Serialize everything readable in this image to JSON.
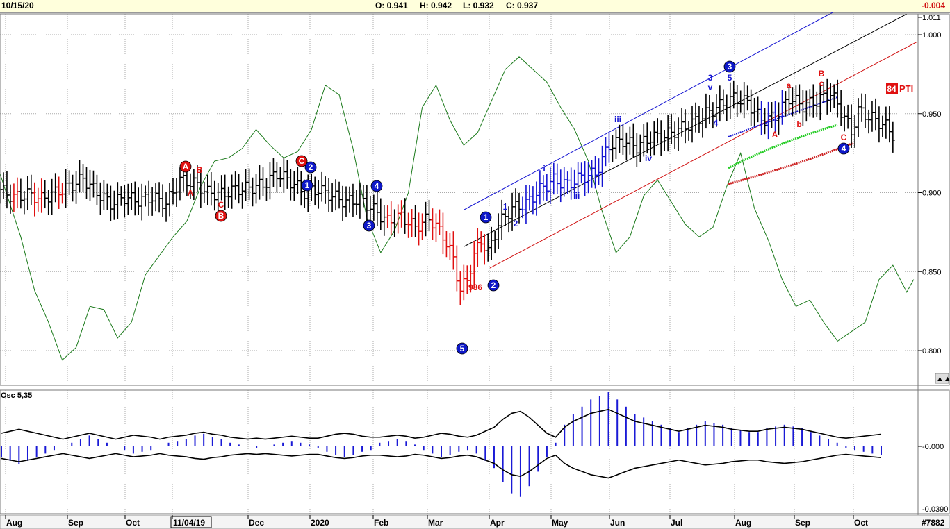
{
  "header": {
    "date": "10/15/20",
    "open": "O: 0.941",
    "high": "H: 0.942",
    "low": "L: 0.932",
    "close": "C: 0.937",
    "change": "-0.004"
  },
  "colors": {
    "up": "#000000",
    "down": "#e01010",
    "wave": "#1414d2",
    "osc": "#1a1ad6",
    "green_line": "#1b7a1b",
    "header_bg": "#ffffdc"
  },
  "chart_data": [
    {
      "type": "line",
      "title": "",
      "ylim": [
        0.78,
        1.01
      ],
      "y_ticks": [
        "1.011",
        "1.000",
        "0.950",
        "0.900",
        "0.850",
        "0.800"
      ],
      "x_ticks": [
        "Aug",
        "Sep",
        "Oct",
        "11/04/19",
        "Dec",
        "2020",
        "Feb",
        "Mar",
        "Apr",
        "May",
        "Jun",
        "Jul",
        "Aug",
        "Sep",
        "Oct"
      ],
      "series": [
        {
          "points": [
            [
              0,
              0.902
            ],
            [
              4,
              0.897
            ],
            [
              8,
              0.899
            ],
            [
              12,
              0.896
            ],
            [
              16,
              0.9
            ],
            [
              20,
              0.904
            ],
            [
              24,
              0.909
            ],
            [
              28,
              0.9
            ],
            [
              32,
              0.893
            ],
            [
              36,
              0.897
            ],
            [
              40,
              0.895
            ],
            [
              44,
              0.897
            ],
            [
              48,
              0.893
            ],
            [
              52,
              0.908
            ],
            [
              56,
              0.906
            ],
            [
              60,
              0.9
            ],
            [
              64,
              0.899
            ],
            [
              68,
              0.902
            ],
            [
              72,
              0.903
            ],
            [
              76,
              0.905
            ],
            [
              80,
              0.912
            ],
            [
              84,
              0.907
            ],
            [
              88,
              0.9
            ],
            [
              92,
              0.902
            ],
            [
              96,
              0.898
            ],
            [
              100,
              0.894
            ],
            [
              104,
              0.896
            ],
            [
              108,
              0.889
            ],
            [
              112,
              0.882
            ],
            [
              116,
              0.885
            ],
            [
              120,
              0.878
            ],
            [
              124,
              0.884
            ],
            [
              128,
              0.873
            ],
            [
              131,
              0.858
            ],
            [
              133,
              0.838
            ],
            [
              135,
              0.845
            ],
            [
              137,
              0.86
            ],
            [
              139,
              0.87
            ],
            [
              141,
              0.862
            ],
            [
              144,
              0.88
            ],
            [
              148,
              0.89
            ],
            [
              152,
              0.893
            ],
            [
              156,
              0.902
            ],
            [
              160,
              0.908
            ],
            [
              164,
              0.905
            ],
            [
              168,
              0.91
            ],
            [
              172,
              0.912
            ],
            [
              176,
              0.93
            ],
            [
              180,
              0.933
            ],
            [
              184,
              0.929
            ],
            [
              188,
              0.935
            ],
            [
              192,
              0.936
            ],
            [
              196,
              0.94
            ],
            [
              200,
              0.944
            ],
            [
              204,
              0.95
            ],
            [
              208,
              0.955
            ],
            [
              212,
              0.96
            ],
            [
              216,
              0.957
            ],
            [
              220,
              0.946
            ],
            [
              224,
              0.948
            ],
            [
              228,
              0.96
            ],
            [
              232,
              0.955
            ],
            [
              236,
              0.958
            ],
            [
              240,
              0.963
            ],
            [
              244,
              0.948
            ],
            [
              246,
              0.938
            ],
            [
              248,
              0.952
            ],
            [
              252,
              0.947
            ],
            [
              256,
              0.942
            ],
            [
              258,
              0.937
            ]
          ]
        },
        {
          "points": [
            [
              0,
              0.912
            ],
            [
              6,
              0.872
            ],
            [
              10,
              0.838
            ],
            [
              14,
              0.818
            ],
            [
              18,
              0.794
            ],
            [
              22,
              0.802
            ],
            [
              26,
              0.828
            ],
            [
              30,
              0.826
            ],
            [
              34,
              0.808
            ],
            [
              38,
              0.818
            ],
            [
              42,
              0.848
            ],
            [
              46,
              0.86
            ],
            [
              50,
              0.872
            ],
            [
              54,
              0.882
            ],
            [
              58,
              0.904
            ],
            [
              62,
              0.92
            ],
            [
              66,
              0.922
            ],
            [
              70,
              0.928
            ],
            [
              74,
              0.94
            ],
            [
              78,
              0.93
            ],
            [
              82,
              0.922
            ],
            [
              86,
              0.926
            ],
            [
              90,
              0.94
            ],
            [
              94,
              0.968
            ],
            [
              98,
              0.962
            ],
            [
              102,
              0.928
            ],
            [
              106,
              0.884
            ],
            [
              110,
              0.862
            ],
            [
              114,
              0.876
            ],
            [
              118,
              0.9
            ],
            [
              122,
              0.954
            ],
            [
              126,
              0.968
            ],
            [
              130,
              0.946
            ],
            [
              134,
              0.93
            ],
            [
              138,
              0.938
            ],
            [
              142,
              0.958
            ],
            [
              146,
              0.978
            ],
            [
              150,
              0.986
            ],
            [
              154,
              0.978
            ],
            [
              158,
              0.97
            ],
            [
              162,
              0.954
            ],
            [
              166,
              0.94
            ],
            [
              170,
              0.92
            ],
            [
              174,
              0.888
            ],
            [
              178,
              0.862
            ],
            [
              182,
              0.872
            ],
            [
              186,
              0.898
            ],
            [
              190,
              0.908
            ],
            [
              194,
              0.894
            ],
            [
              198,
              0.88
            ],
            [
              202,
              0.872
            ],
            [
              206,
              0.878
            ],
            [
              210,
              0.904
            ],
            [
              214,
              0.925
            ],
            [
              218,
              0.89
            ],
            [
              222,
              0.87
            ],
            [
              226,
              0.845
            ],
            [
              230,
              0.828
            ],
            [
              234,
              0.832
            ],
            [
              238,
              0.818
            ],
            [
              242,
              0.806
            ],
            [
              246,
              0.812
            ],
            [
              250,
              0.818
            ],
            [
              254,
              0.845
            ],
            [
              258,
              0.854
            ],
            [
              262,
              0.837
            ],
            [
              264,
              0.845
            ]
          ]
        }
      ]
    },
    {
      "type": "bar",
      "title": "Osc 5,35",
      "y_ticks": [
        "-0.000",
        "-0.0390"
      ],
      "values": [
        -0.006,
        -0.008,
        -0.01,
        -0.008,
        -0.006,
        -0.004,
        -0.002,
        0.0,
        0.002,
        0.004,
        0.006,
        0.004,
        0.002,
        0.0,
        -0.002,
        -0.004,
        -0.003,
        -0.002,
        0.0,
        0.002,
        0.003,
        0.004,
        0.006,
        0.007,
        0.005,
        0.004,
        0.002,
        0.001,
        0.0,
        -0.001,
        0.0,
        0.001,
        0.002,
        0.003,
        0.002,
        0.001,
        -0.001,
        -0.003,
        -0.005,
        -0.006,
        -0.005,
        -0.003,
        -0.002,
        0.002,
        0.003,
        0.004,
        0.003,
        0.001,
        -0.002,
        -0.004,
        -0.006,
        -0.005,
        -0.003,
        -0.002,
        -0.004,
        -0.008,
        -0.012,
        -0.02,
        -0.026,
        -0.028,
        -0.022,
        -0.014,
        -0.006,
        0.002,
        0.012,
        0.018,
        0.022,
        0.026,
        0.028,
        0.03,
        0.026,
        0.022,
        0.018,
        0.016,
        0.014,
        0.012,
        0.01,
        0.008,
        0.01,
        0.012,
        0.014,
        0.013,
        0.012,
        0.01,
        0.009,
        0.008,
        0.008,
        0.01,
        0.011,
        0.012,
        0.011,
        0.01,
        0.008,
        0.006,
        0.004,
        0.002,
        -0.001,
        -0.002,
        -0.003,
        -0.004,
        -0.005
      ]
    }
  ],
  "wave_labels": [
    {
      "t": "A",
      "c": "red",
      "circle": true
    },
    {
      "t": "B",
      "c": "red",
      "circle": false
    },
    {
      "t": "A",
      "c": "red",
      "circle": false
    },
    {
      "t": "C",
      "c": "red",
      "circle": false
    },
    {
      "t": "B",
      "c": "red",
      "circle": true
    },
    {
      "t": "C",
      "c": "red",
      "circle": true
    },
    {
      "t": "1",
      "c": "blue",
      "circle": true
    },
    {
      "t": "2",
      "c": "blue",
      "circle": true
    },
    {
      "t": "3",
      "c": "blue",
      "circle": true
    },
    {
      "t": "4",
      "c": "blue",
      "circle": true
    },
    {
      "t": "5",
      "c": "blue",
      "circle": true
    },
    {
      "t": "1",
      "c": "blue",
      "circle": true
    },
    {
      "t": "2",
      "c": "blue",
      "circle": true
    },
    {
      "t": "1",
      "c": "blue",
      "circle": false
    },
    {
      "t": "2",
      "c": "blue",
      "circle": false
    },
    {
      "t": "i",
      "c": "blue",
      "circle": false
    },
    {
      "t": "ii",
      "c": "blue",
      "circle": false
    },
    {
      "t": "iii",
      "c": "blue",
      "circle": false
    },
    {
      "t": "iv",
      "c": "blue",
      "circle": false
    },
    {
      "t": "v",
      "c": "blue",
      "circle": false
    },
    {
      "t": "3",
      "c": "blue",
      "circle": false
    },
    {
      "t": "4",
      "c": "blue",
      "circle": false
    },
    {
      "t": "5",
      "c": "blue",
      "circle": false
    },
    {
      "t": "3",
      "c": "blue",
      "circle": true
    },
    {
      "t": "a",
      "c": "red",
      "circle": false
    },
    {
      "t": "b",
      "c": "red",
      "circle": false
    },
    {
      "t": "c",
      "c": "red",
      "circle": false
    },
    {
      "t": "B",
      "c": "red",
      "circle": false
    },
    {
      "t": "A",
      "c": "red",
      "circle": false
    },
    {
      "t": "C",
      "c": "red",
      "circle": false
    },
    {
      "t": "4",
      "c": "blue",
      "circle": true
    },
    {
      "t": "986",
      "c": "red",
      "circle": false
    }
  ],
  "pti": {
    "value": "84",
    "label": "PTI"
  },
  "footer_id": "#7882",
  "corner_label": "▲▲▲"
}
